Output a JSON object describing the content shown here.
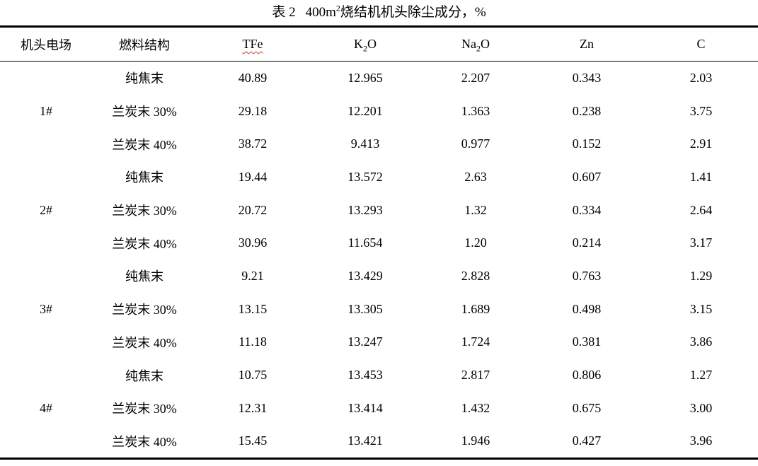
{
  "title": {
    "label": "表 2",
    "unit_base": "400m",
    "unit_sup": "2",
    "rest": "烧结机机头除尘成分，%",
    "spellcheck_underline_color": "#cc3322"
  },
  "table": {
    "columns": [
      {
        "name": "机头电场"
      },
      {
        "name": "燃料结构"
      },
      {
        "name": "TFe",
        "wavy_underline": true
      },
      {
        "name": "K2O",
        "segments": [
          {
            "text": "K"
          },
          {
            "text": "2",
            "sub": true
          },
          {
            "text": "O"
          }
        ]
      },
      {
        "name": "Na2O",
        "segments": [
          {
            "text": "Na"
          },
          {
            "text": "2",
            "sub": true
          },
          {
            "text": "O"
          }
        ]
      },
      {
        "name": "Zn"
      },
      {
        "name": "C"
      }
    ],
    "groups": [
      {
        "field": "1#",
        "rows": [
          {
            "fuel": "纯焦末",
            "values": [
              "40.89",
              "12.965",
              "2.207",
              "0.343",
              "2.03"
            ]
          },
          {
            "fuel": "兰炭末 30%",
            "values": [
              "29.18",
              "12.201",
              "1.363",
              "0.238",
              "3.75"
            ]
          },
          {
            "fuel": "兰炭末 40%",
            "values": [
              "38.72",
              "9.413",
              "0.977",
              "0.152",
              "2.91"
            ]
          }
        ]
      },
      {
        "field": "2#",
        "rows": [
          {
            "fuel": "纯焦末",
            "values": [
              "19.44",
              "13.572",
              "2.63",
              "0.607",
              "1.41"
            ]
          },
          {
            "fuel": "兰炭末 30%",
            "values": [
              "20.72",
              "13.293",
              "1.32",
              "0.334",
              "2.64"
            ]
          },
          {
            "fuel": "兰炭末 40%",
            "values": [
              "30.96",
              "11.654",
              "1.20",
              "0.214",
              "3.17"
            ]
          }
        ]
      },
      {
        "field": "3#",
        "rows": [
          {
            "fuel": "纯焦末",
            "values": [
              "9.21",
              "13.429",
              "2.828",
              "0.763",
              "1.29"
            ]
          },
          {
            "fuel": "兰炭末 30%",
            "values": [
              "13.15",
              "13.305",
              "1.689",
              "0.498",
              "3.15"
            ]
          },
          {
            "fuel": "兰炭末 40%",
            "values": [
              "11.18",
              "13.247",
              "1.724",
              "0.381",
              "3.86"
            ]
          }
        ]
      },
      {
        "field": "4#",
        "rows": [
          {
            "fuel": "纯焦末",
            "values": [
              "10.75",
              "13.453",
              "2.817",
              "0.806",
              "1.27"
            ]
          },
          {
            "fuel": "兰炭末 30%",
            "values": [
              "12.31",
              "13.414",
              "1.432",
              "0.675",
              "3.00"
            ]
          },
          {
            "fuel": "兰炭末 40%",
            "values": [
              "15.45",
              "13.421",
              "1.946",
              "0.427",
              "3.96"
            ]
          }
        ]
      }
    ]
  }
}
